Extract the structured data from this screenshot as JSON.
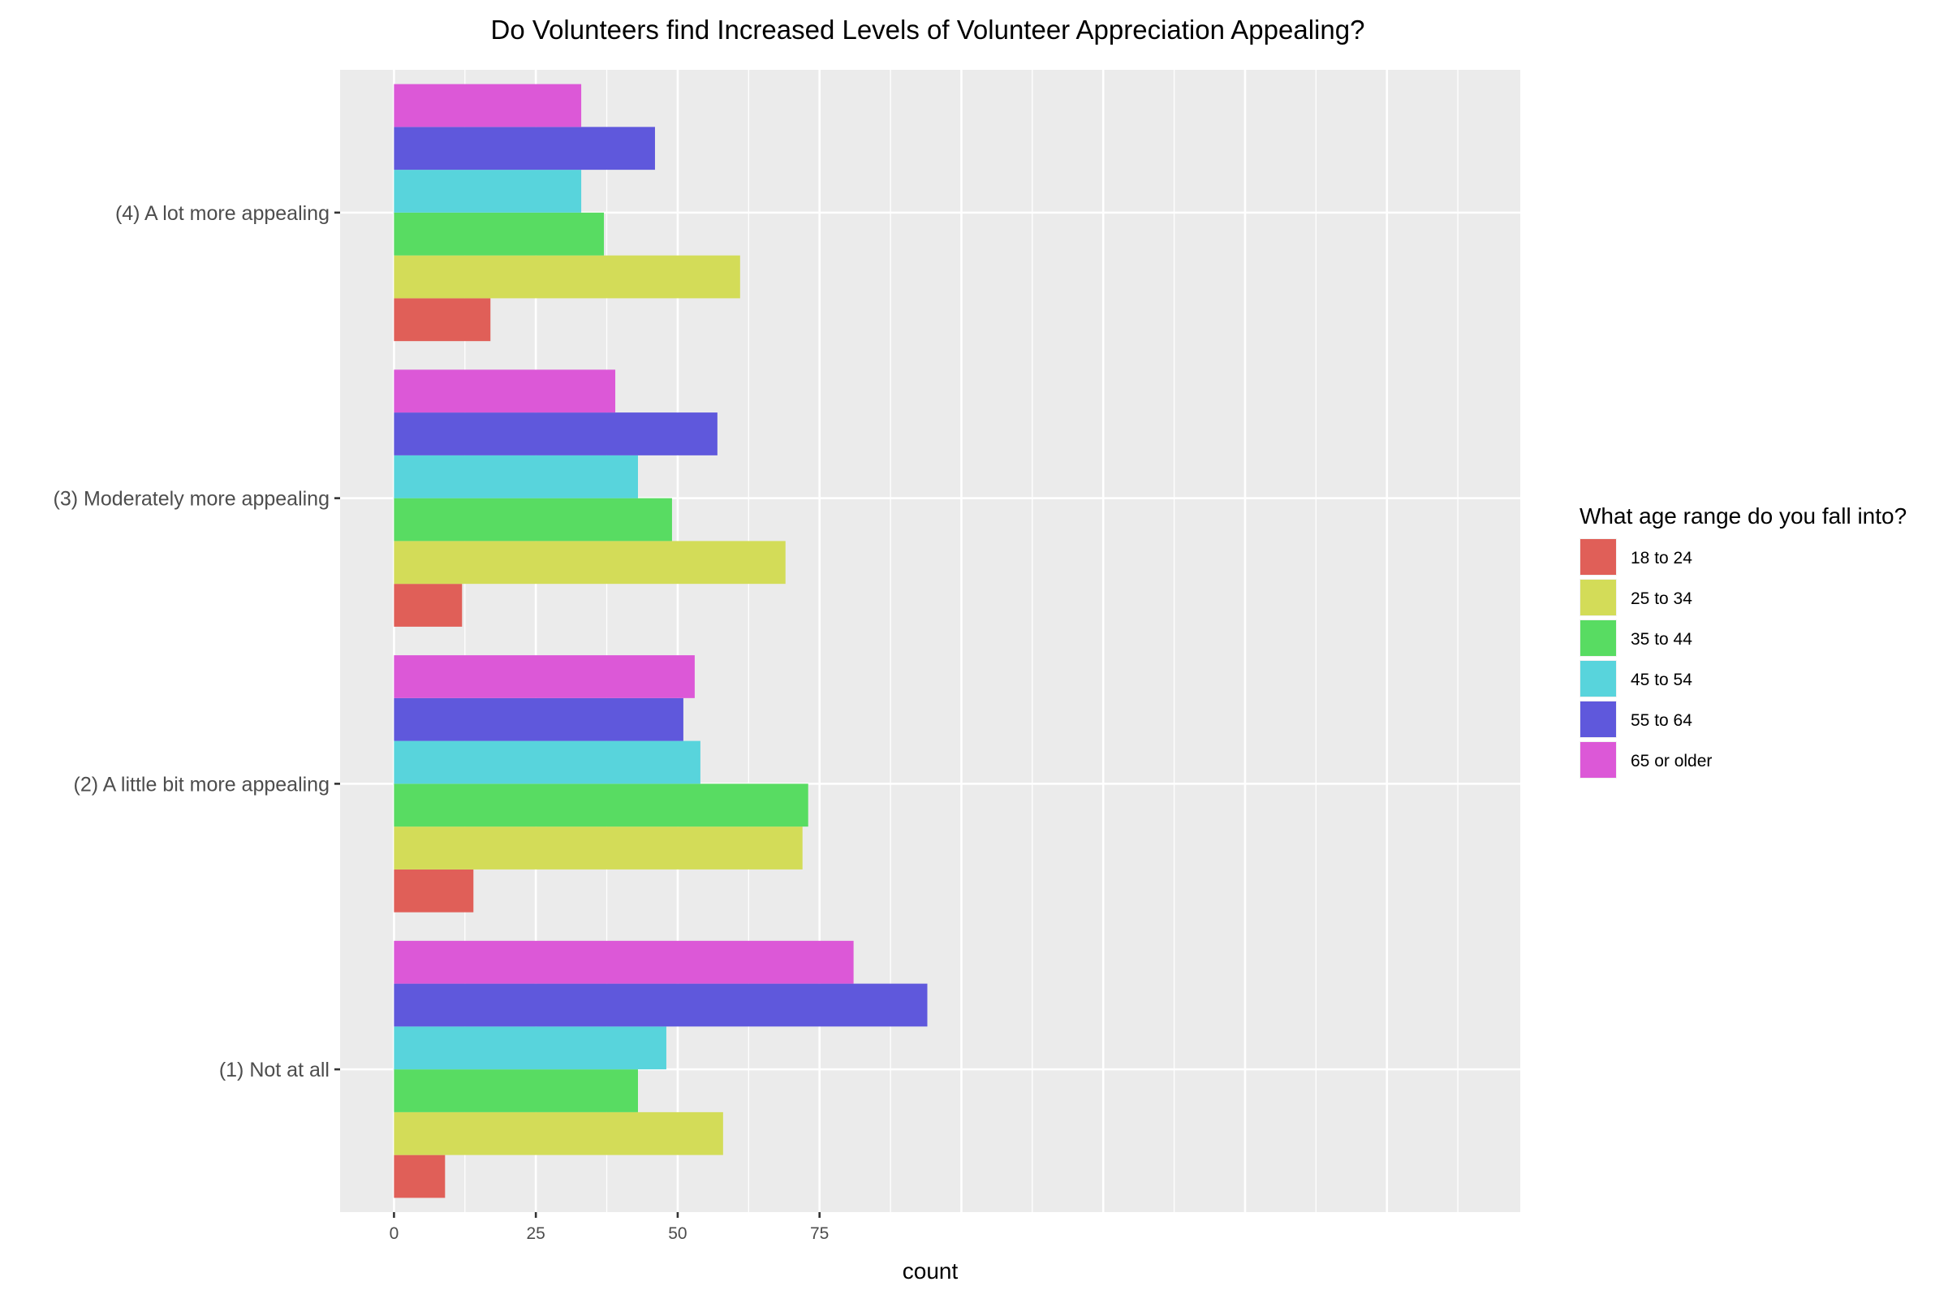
{
  "chart_data": {
    "type": "bar",
    "orientation": "horizontal",
    "title": "Do Volunteers find Increased Levels of Volunteer Appreciation Appealing?",
    "xlabel": "count",
    "ylabel": "",
    "xlim": [
      -9.5,
      198.5
    ],
    "x_ticks": [
      0,
      25,
      50,
      75
    ],
    "grid": true,
    "categories": [
      "(1) Not at all",
      "(2) A little bit more appealing",
      "(3) Moderately more appealing",
      "(4) A lot more appealing"
    ],
    "legend": {
      "title": "What age range do you fall into?",
      "position": "right"
    },
    "series": [
      {
        "name": "18 to 24",
        "color": "#E05F58",
        "values": [
          9,
          14,
          12,
          17
        ]
      },
      {
        "name": "25 to 34",
        "color": "#D3DC58",
        "values": [
          58,
          72,
          69,
          61
        ]
      },
      {
        "name": "35 to 44",
        "color": "#58DC62",
        "values": [
          43,
          73,
          49,
          37
        ]
      },
      {
        "name": "45 to 54",
        "color": "#58D4DC",
        "values": [
          48,
          54,
          43,
          33
        ]
      },
      {
        "name": "55 to 64",
        "color": "#5F58DC",
        "values": [
          94,
          51,
          57,
          46
        ]
      },
      {
        "name": "65 or older",
        "color": "#DC58D7",
        "values": [
          81,
          53,
          39,
          33
        ]
      }
    ]
  }
}
